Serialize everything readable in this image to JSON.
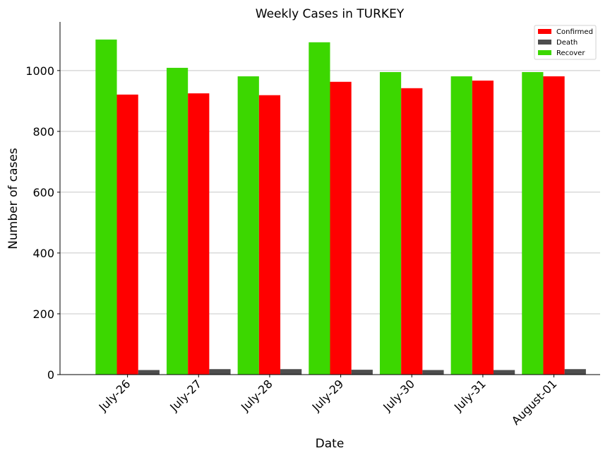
{
  "chart_data": {
    "type": "bar",
    "title": "Weekly Cases in TURKEY",
    "xlabel": "Date",
    "ylabel": "Number of cases",
    "categories": [
      "July-26",
      "July-27",
      "July-28",
      "July-29",
      "July-30",
      "July-31",
      "August-01"
    ],
    "series": [
      {
        "name": "Recover",
        "color": "#3cd700",
        "values": [
          1102,
          1009,
          981,
          1093,
          995,
          981,
          995
        ]
      },
      {
        "name": "Confirmed",
        "color": "#ff0000",
        "values": [
          921,
          925,
          919,
          963,
          942,
          967,
          981
        ]
      },
      {
        "name": "Death",
        "color": "#4d4d4d",
        "values": [
          15,
          18,
          18,
          16,
          15,
          15,
          18
        ]
      }
    ],
    "legend_order": [
      "Confirmed",
      "Death",
      "Recover"
    ],
    "ylim": [
      0,
      1160
    ],
    "yticks": [
      0,
      200,
      400,
      600,
      800,
      1000
    ],
    "grid": "horizontal",
    "legend_position": "top-right"
  }
}
